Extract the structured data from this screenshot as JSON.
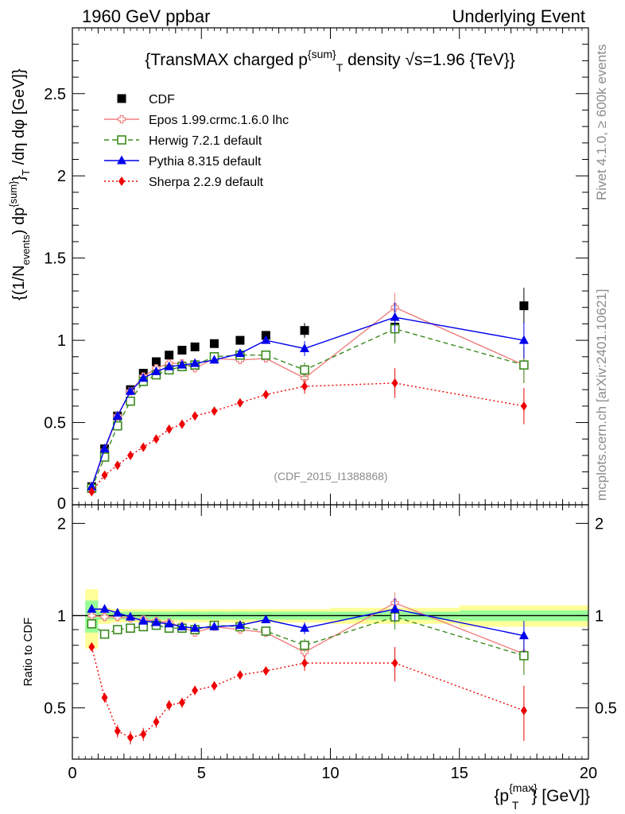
{
  "header": {
    "left": "1960 GeV ppbar",
    "right": "Underlying Event"
  },
  "side_text": {
    "rivet": "Rivet 4.1.0, ≥ 600k events",
    "mcplots": "mcplots.cern.ch [arXiv:2401.10621]"
  },
  "chart_data": [
    {
      "type": "line",
      "panel": "main",
      "title": "{TransMAX charged p^{sum}_T density √s=1.96 {TeV}}",
      "title_parts": {
        "a": "{TransMAX charged p",
        "sup": "{sum}",
        "sub": "T",
        "b": " density √s=1.96 {TeV}}"
      },
      "ylabel": "{(1/N_{events}) dp^{sum}_T /dη dφ [GeV]}",
      "ylabel_parts": {
        "p1": "{(1/N",
        "s1": "events",
        "p2": ") dp",
        "s2": "{sum}",
        "s3": "}",
        "s4": "T",
        "p3": " /dη  dφ [GeV]}"
      },
      "xlim": [
        0,
        20
      ],
      "ylim": [
        0,
        2.9
      ],
      "yticks": [
        0.5,
        1,
        1.5,
        2,
        2.5
      ],
      "ytick_labels": [
        "0.5",
        "1",
        "1.5",
        "2",
        "2.5"
      ],
      "y_zero_label": "0",
      "watermark": "(CDF_2015_I1388868)",
      "legend": {
        "placement": "top-left",
        "entries": [
          "CDF",
          "Epos 1.99.crmc.1.6.0 lhc",
          "Herwig 7.2.1 default",
          "Pythia 8.315 default",
          "Sherpa 2.2.9 default"
        ]
      },
      "series": [
        {
          "name": "CDF",
          "color": "#000000",
          "marker": "square",
          "line": "none",
          "x": [
            0.75,
            1.25,
            1.75,
            2.25,
            2.75,
            3.25,
            3.75,
            4.25,
            4.75,
            5.5,
            6.5,
            7.5,
            9.0,
            12.5,
            17.5
          ],
          "y": [
            0.11,
            0.34,
            0.54,
            0.7,
            0.8,
            0.87,
            0.91,
            0.94,
            0.96,
            0.98,
            1.0,
            1.03,
            1.06,
            1.08,
            1.21
          ]
        },
        {
          "name": "Epos 1.99.crmc.1.6.0 lhc",
          "color": "#f08080",
          "marker": "open-cross",
          "line": "solid",
          "x": [
            0.75,
            1.25,
            1.75,
            2.25,
            2.75,
            3.25,
            3.75,
            4.25,
            4.75,
            5.5,
            6.5,
            7.5,
            9.0,
            12.5,
            17.5
          ],
          "y": [
            0.11,
            0.33,
            0.54,
            0.69,
            0.78,
            0.83,
            0.86,
            0.86,
            0.83,
            0.89,
            0.88,
            0.89,
            0.77,
            1.2,
            0.85
          ]
        },
        {
          "name": "Herwig 7.2.1 default",
          "color": "#3a8a1e",
          "marker": "open-square",
          "line": "dashed",
          "x": [
            0.75,
            1.25,
            1.75,
            2.25,
            2.75,
            3.25,
            3.75,
            4.25,
            4.75,
            5.5,
            6.5,
            7.5,
            9.0,
            12.5,
            17.5
          ],
          "y": [
            0.1,
            0.29,
            0.48,
            0.63,
            0.75,
            0.79,
            0.82,
            0.84,
            0.85,
            0.9,
            0.91,
            0.91,
            0.82,
            1.07,
            0.85
          ]
        },
        {
          "name": "Pythia 8.315 default",
          "color": "#0000ee",
          "marker": "triangle",
          "line": "solid",
          "x": [
            0.75,
            1.25,
            1.75,
            2.25,
            2.75,
            3.25,
            3.75,
            4.25,
            4.75,
            5.5,
            6.5,
            7.5,
            9.0,
            12.5,
            17.5
          ],
          "y": [
            0.11,
            0.34,
            0.54,
            0.69,
            0.77,
            0.81,
            0.84,
            0.85,
            0.86,
            0.88,
            0.92,
            1.0,
            0.95,
            1.14,
            1.0
          ]
        },
        {
          "name": "Sherpa 2.2.9 default",
          "color": "#ee0000",
          "marker": "diamond",
          "line": "dotted",
          "x": [
            0.75,
            1.25,
            1.75,
            2.25,
            2.75,
            3.25,
            3.75,
            4.25,
            4.75,
            5.5,
            6.5,
            7.5,
            9.0,
            12.5,
            17.5
          ],
          "y": [
            0.08,
            0.18,
            0.24,
            0.3,
            0.35,
            0.4,
            0.46,
            0.49,
            0.54,
            0.57,
            0.62,
            0.67,
            0.72,
            0.74,
            0.6
          ]
        }
      ]
    },
    {
      "type": "line",
      "panel": "ratio",
      "ylabel": "Ratio to CDF",
      "xlabel": "{p_T^{max}} [GeV]}",
      "xlabel_parts": {
        "a": "{p",
        "sup": "{max}",
        "sub": "T",
        "b": "} [GeV]}"
      },
      "xlim": [
        0,
        20
      ],
      "ylim": [
        0.34,
        2.3
      ],
      "xticks": [
        0,
        5,
        10,
        15,
        20
      ],
      "xtick_labels": [
        "0",
        "5",
        "10",
        "15",
        "20"
      ],
      "yticks": [
        0.5,
        1,
        2
      ],
      "ytick_labels": [
        "0.5",
        "1",
        "2"
      ],
      "reference_band": {
        "x_edges": [
          0.5,
          1.0,
          1.5,
          2.0,
          2.5,
          3.0,
          3.5,
          4.0,
          4.5,
          5.0,
          6.0,
          7.0,
          8.0,
          10.0,
          15.0,
          20.0
        ],
        "outer_lo": [
          0.78,
          0.94,
          0.95,
          0.95,
          0.95,
          0.95,
          0.95,
          0.95,
          0.95,
          0.95,
          0.95,
          0.95,
          0.95,
          0.94,
          0.92
        ],
        "outer_hi": [
          1.22,
          1.06,
          1.05,
          1.05,
          1.05,
          1.05,
          1.05,
          1.05,
          1.05,
          1.05,
          1.05,
          1.05,
          1.05,
          1.06,
          1.08
        ],
        "inner_lo": [
          0.88,
          0.97,
          0.97,
          0.97,
          0.97,
          0.97,
          0.97,
          0.97,
          0.97,
          0.97,
          0.97,
          0.97,
          0.97,
          0.97,
          0.96
        ],
        "inner_hi": [
          1.12,
          1.03,
          1.03,
          1.03,
          1.03,
          1.03,
          1.03,
          1.03,
          1.03,
          1.03,
          1.03,
          1.03,
          1.03,
          1.03,
          1.04
        ]
      },
      "series": [
        {
          "name": "Epos 1.99.crmc.1.6.0 lhc",
          "color": "#f08080",
          "marker": "open-cross",
          "line": "solid",
          "x": [
            0.75,
            1.25,
            1.75,
            2.25,
            2.75,
            3.25,
            3.75,
            4.25,
            4.75,
            5.5,
            6.5,
            7.5,
            9.0,
            12.5,
            17.5
          ],
          "y": [
            1.0,
            0.99,
            0.99,
            0.98,
            0.97,
            0.96,
            0.95,
            0.92,
            0.88,
            0.92,
            0.9,
            0.88,
            0.76,
            1.1,
            0.75
          ]
        },
        {
          "name": "Herwig 7.2.1 default",
          "color": "#3a8a1e",
          "marker": "open-square",
          "line": "dashed",
          "x": [
            0.75,
            1.25,
            1.75,
            2.25,
            2.75,
            3.25,
            3.75,
            4.25,
            4.75,
            5.5,
            6.5,
            7.5,
            9.0,
            12.5,
            17.5
          ],
          "y": [
            0.94,
            0.87,
            0.9,
            0.91,
            0.92,
            0.93,
            0.91,
            0.91,
            0.9,
            0.93,
            0.92,
            0.89,
            0.8,
            0.99,
            0.74
          ]
        },
        {
          "name": "Pythia 8.315 default",
          "color": "#0000ee",
          "marker": "triangle",
          "line": "solid",
          "x": [
            0.75,
            1.25,
            1.75,
            2.25,
            2.75,
            3.25,
            3.75,
            4.25,
            4.75,
            5.5,
            6.5,
            7.5,
            9.0,
            12.5,
            17.5
          ],
          "y": [
            1.05,
            1.05,
            1.02,
            0.99,
            0.96,
            0.95,
            0.94,
            0.92,
            0.91,
            0.92,
            0.93,
            0.97,
            0.91,
            1.05,
            0.86
          ]
        },
        {
          "name": "Sherpa 2.2.9 default",
          "color": "#ee0000",
          "marker": "diamond",
          "line": "dotted",
          "x": [
            0.75,
            1.25,
            1.75,
            2.25,
            2.75,
            3.25,
            3.75,
            4.25,
            4.75,
            5.5,
            6.5,
            7.5,
            9.0,
            12.5,
            17.5
          ],
          "y": [
            0.79,
            0.54,
            0.42,
            0.4,
            0.41,
            0.45,
            0.51,
            0.52,
            0.57,
            0.59,
            0.64,
            0.66,
            0.7,
            0.7,
            0.49
          ]
        }
      ]
    }
  ]
}
